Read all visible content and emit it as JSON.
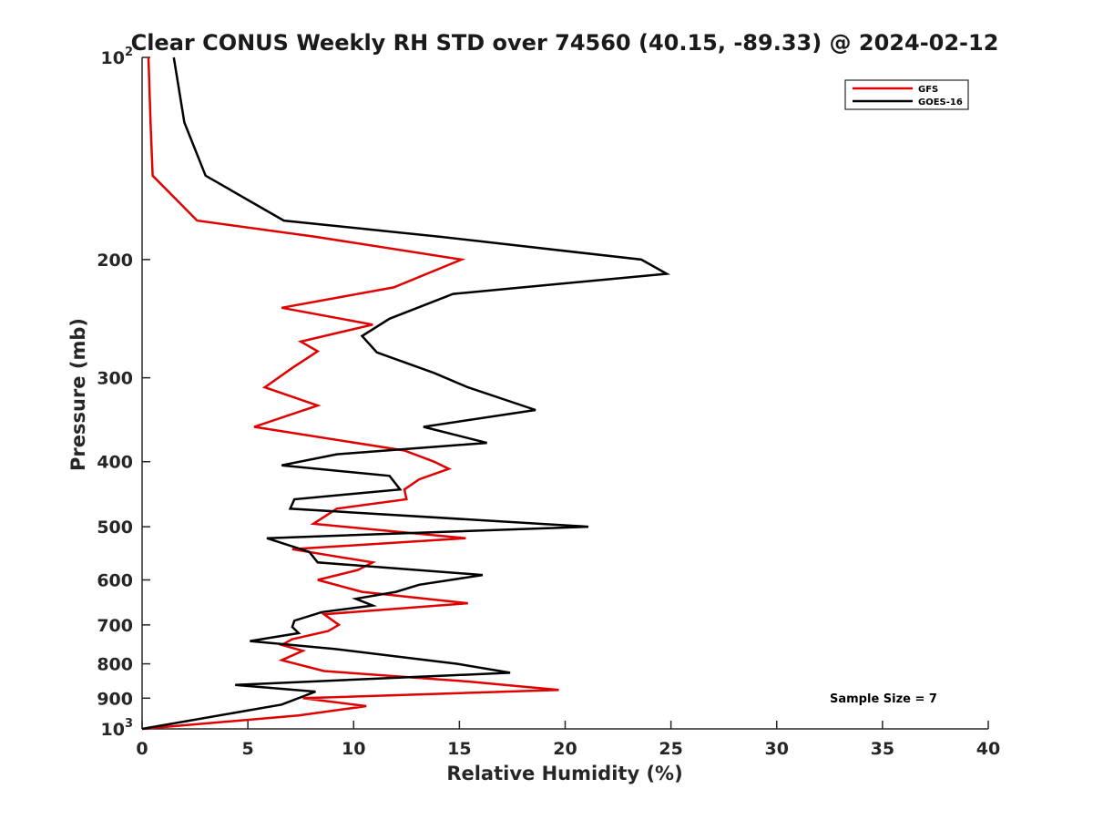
{
  "chart_data": {
    "type": "line",
    "title": "Clear CONUS Weekly RH STD over 74560 (40.15, -89.33) @ 2024-02-12",
    "xlabel": "Relative Humidity (%)",
    "ylabel": "Pressure (mb)",
    "xlim": [
      0,
      40
    ],
    "ylim": [
      100,
      1000
    ],
    "y_scale": "log",
    "y_reversed": true,
    "grid": false,
    "legend_position": "top-right",
    "x_ticks": [
      "0",
      "5",
      "10",
      "15",
      "20",
      "25",
      "30",
      "35",
      "40"
    ],
    "y_ticks": [
      {
        "value": 100,
        "base": "10",
        "exp": "2"
      },
      {
        "value": 200,
        "label": "200"
      },
      {
        "value": 300,
        "label": "300"
      },
      {
        "value": 400,
        "label": "400"
      },
      {
        "value": 500,
        "label": "500"
      },
      {
        "value": 600,
        "label": "600"
      },
      {
        "value": 700,
        "label": "700"
      },
      {
        "value": 800,
        "label": "800"
      },
      {
        "value": 900,
        "label": "900"
      },
      {
        "value": 1000,
        "base": "10",
        "exp": "3"
      }
    ],
    "series": [
      {
        "name": "GFS",
        "color": "#e00000",
        "points": [
          [
            0.3,
            100
          ],
          [
            0.4,
            125
          ],
          [
            0.5,
            150
          ],
          [
            2.6,
            175
          ],
          [
            8.2,
            185
          ],
          [
            15.1,
            200
          ],
          [
            11.9,
            220
          ],
          [
            6.6,
            236
          ],
          [
            10.9,
            250
          ],
          [
            7.5,
            265
          ],
          [
            8.3,
            274
          ],
          [
            7.1,
            290
          ],
          [
            5.8,
            310
          ],
          [
            8.3,
            330
          ],
          [
            5.3,
            355
          ],
          [
            12.4,
            385
          ],
          [
            13.8,
            400
          ],
          [
            14.5,
            410
          ],
          [
            13.1,
            425
          ],
          [
            12.4,
            440
          ],
          [
            12.5,
            455
          ],
          [
            9.2,
            470
          ],
          [
            8.1,
            495
          ],
          [
            15.3,
            520
          ],
          [
            7.1,
            540
          ],
          [
            10.9,
            565
          ],
          [
            10.2,
            580
          ],
          [
            8.3,
            600
          ],
          [
            10.4,
            625
          ],
          [
            15.4,
            650
          ],
          [
            8.6,
            675
          ],
          [
            9.3,
            700
          ],
          [
            8.8,
            715
          ],
          [
            7.1,
            735
          ],
          [
            6.6,
            750
          ],
          [
            7.6,
            765
          ],
          [
            6.6,
            790
          ],
          [
            8.6,
            820
          ],
          [
            15.4,
            850
          ],
          [
            19.7,
            875
          ],
          [
            7.6,
            900
          ],
          [
            10.6,
            925
          ],
          [
            7.4,
            955
          ],
          [
            0.0,
            1000
          ]
        ]
      },
      {
        "name": "GOES-16",
        "color": "#000000",
        "points": [
          [
            1.5,
            100
          ],
          [
            2.0,
            125
          ],
          [
            3.0,
            150
          ],
          [
            6.7,
            175
          ],
          [
            14.1,
            185
          ],
          [
            23.6,
            200
          ],
          [
            24.8,
            210
          ],
          [
            14.7,
            225
          ],
          [
            11.7,
            245
          ],
          [
            10.4,
            260
          ],
          [
            11.1,
            275
          ],
          [
            13.8,
            295
          ],
          [
            15.4,
            310
          ],
          [
            18.6,
            335
          ],
          [
            13.3,
            355
          ],
          [
            16.3,
            375
          ],
          [
            9.2,
            390
          ],
          [
            6.6,
            405
          ],
          [
            11.7,
            420
          ],
          [
            12.2,
            440
          ],
          [
            7.2,
            455
          ],
          [
            7.0,
            470
          ],
          [
            21.1,
            500
          ],
          [
            5.9,
            520
          ],
          [
            7.9,
            545
          ],
          [
            8.3,
            565
          ],
          [
            16.1,
            590
          ],
          [
            13.1,
            610
          ],
          [
            12.0,
            625
          ],
          [
            10.1,
            640
          ],
          [
            10.9,
            655
          ],
          [
            8.5,
            670
          ],
          [
            7.2,
            690
          ],
          [
            7.1,
            705
          ],
          [
            7.4,
            720
          ],
          [
            5.1,
            740
          ],
          [
            9.1,
            760
          ],
          [
            14.9,
            800
          ],
          [
            17.4,
            825
          ],
          [
            4.4,
            860
          ],
          [
            8.2,
            880
          ],
          [
            6.6,
            920
          ],
          [
            0.0,
            1000
          ]
        ]
      }
    ],
    "annotation": "Sample Size = 7"
  }
}
